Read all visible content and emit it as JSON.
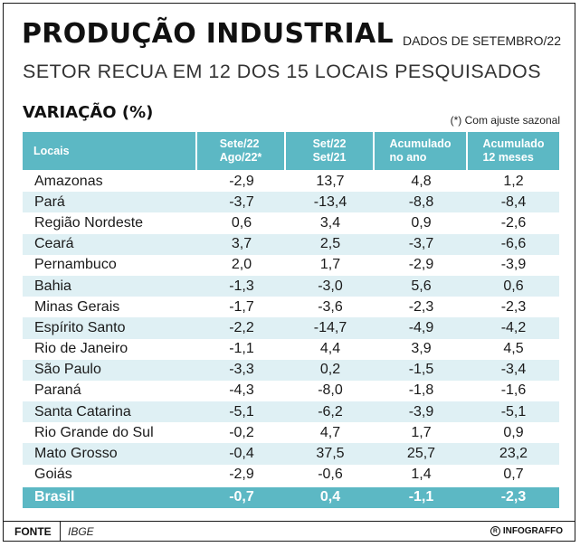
{
  "header": {
    "title": "PRODUÇÃO INDUSTRIAL",
    "dados": "DADOS DE SETEMBRO/22",
    "subtitle": "SETOR RECUA EM 12 DOS 15 LOCAIS PESQUISADOS",
    "section": "VARIAÇÃO (%)",
    "note": "(*) Com ajuste sazonal"
  },
  "table": {
    "columns": [
      {
        "l1": "Locais",
        "l2": ""
      },
      {
        "l1": "Sete/22",
        "l2": "Ago/22*"
      },
      {
        "l1": "Set/22",
        "l2": "Set/21"
      },
      {
        "l1": "Acumulado",
        "l2": "no ano"
      },
      {
        "l1": "Acumulado",
        "l2": "12 meses"
      }
    ],
    "rows": [
      [
        "Amazonas",
        "-2,9",
        "13,7",
        "4,8",
        "1,2"
      ],
      [
        "Pará",
        "-3,7",
        "-13,4",
        "-8,8",
        "-8,4"
      ],
      [
        "Região Nordeste",
        "0,6",
        "3,4",
        "0,9",
        "-2,6"
      ],
      [
        "Ceará",
        "3,7",
        "2,5",
        "-3,7",
        "-6,6"
      ],
      [
        "Pernambuco",
        "2,0",
        "1,7",
        "-2,9",
        "-3,9"
      ],
      [
        "Bahia",
        "-1,3",
        "-3,0",
        "5,6",
        "0,6"
      ],
      [
        "Minas Gerais",
        "-1,7",
        "-3,6",
        "-2,3",
        "-2,3"
      ],
      [
        "Espírito Santo",
        "-2,2",
        "-14,7",
        "-4,9",
        "-4,2"
      ],
      [
        "Rio de Janeiro",
        "-1,1",
        "4,4",
        "3,9",
        "4,5"
      ],
      [
        "São Paulo",
        "-3,3",
        "0,2",
        "-1,5",
        "-3,4"
      ],
      [
        "Paraná",
        "-4,3",
        "-8,0",
        "-1,8",
        "-1,6"
      ],
      [
        "Santa Catarina",
        "-5,1",
        "-6,2",
        "-3,9",
        "-5,1"
      ],
      [
        "Rio Grande do Sul",
        "-0,2",
        "4,7",
        "1,7",
        "0,9"
      ],
      [
        "Mato Grosso",
        "-0,4",
        "37,5",
        "25,7",
        "23,2"
      ],
      [
        "Goiás",
        "-2,9",
        "-0,6",
        "1,4",
        "0,7"
      ]
    ],
    "total": [
      "Brasil",
      "-0,7",
      "0,4",
      "-1,1",
      "-2,3"
    ]
  },
  "footer": {
    "fonte_label": "FONTE",
    "fonte_value": "IBGE",
    "brand_mark": "R",
    "brand": "INFOGRAFFO"
  },
  "colors": {
    "header_bg": "#5cb8c4",
    "alt_row_bg": "#dff0f4"
  }
}
